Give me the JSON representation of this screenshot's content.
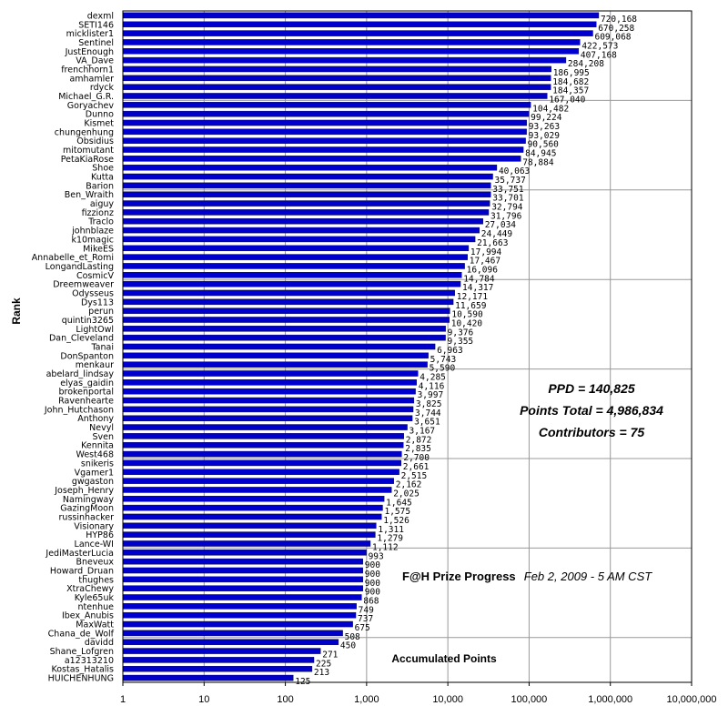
{
  "chart_data": {
    "type": "bar",
    "orientation": "horizontal",
    "x_scale": "log",
    "xlim": [
      1,
      10000000
    ],
    "x_ticks": [
      "1",
      "10",
      "100",
      "1,000",
      "10,000",
      "100,000",
      "1,000,000",
      "10,000,000"
    ],
    "ylabel": "Rank",
    "xlabel": "Accumulated Points",
    "grid": true,
    "bar_color": "#0000cc",
    "categories": [
      "dexml",
      "SETI146",
      "micklister1",
      "Sentinel",
      "JustEnough",
      "VA_Dave",
      "frenchhorn1",
      "amhamler",
      "rdyck",
      "Michael_G.R.",
      "Goryachev",
      "Dunno",
      "Kismet",
      "chungenhung",
      "Obsidius",
      "mitomutant",
      "PetaKiaRose",
      "Shoe",
      "Kutta",
      "Barion",
      "Ben_Wraith",
      "aiguy",
      "fizzionz",
      "Traclo",
      "johnblaze",
      "k10magic",
      "MikeES",
      "Annabelle_et_Romi",
      "LongandLasting",
      "CosmicV",
      "Dreemweaver",
      "Odysseus",
      "Dys113",
      "perun",
      "quintin3265",
      "LightOwl",
      "Dan_Cleveland",
      "Tanai",
      "DonSpanton",
      "menkaur",
      "abelard_lindsay",
      "elyas_gaidin",
      "brokenportal",
      "Ravenhearte",
      "John_Hutchason",
      "Anthony",
      "Nevyl",
      "Sven",
      "Kennita",
      "West468",
      "snikeris",
      "Vgamer1",
      "gwgaston",
      "Joseph_Henry",
      "Namingway",
      "GazingMoon",
      "russinhacker",
      "Visionary",
      "HYP86",
      "Lance-WI",
      "JediMasterLucia",
      "Bneveux",
      "Howard_Druan",
      "thughes",
      "XtraChewy",
      "Kyle65uk",
      "ntenhue",
      "Ibex_Anubis",
      "MaxWatt",
      "Chana_de_Wolf",
      "davidd",
      "Shane_Lofgren",
      "a12313210",
      "Kostas_Hatalis",
      "HUICHENHUNG"
    ],
    "values": [
      720168,
      670258,
      609068,
      422573,
      407168,
      284208,
      186995,
      184682,
      184357,
      167040,
      104482,
      99224,
      93263,
      93029,
      90560,
      84945,
      78884,
      40063,
      35737,
      33751,
      33701,
      32794,
      31796,
      27034,
      24449,
      21663,
      17994,
      17467,
      16096,
      14784,
      14317,
      12171,
      11659,
      10590,
      10420,
      9376,
      9355,
      6963,
      5743,
      5590,
      4285,
      4116,
      3997,
      3825,
      3744,
      3651,
      3167,
      2872,
      2835,
      2700,
      2661,
      2515,
      2162,
      2025,
      1645,
      1575,
      1526,
      1311,
      1279,
      1112,
      993,
      900,
      900,
      900,
      900,
      868,
      749,
      737,
      675,
      508,
      450,
      271,
      225,
      213,
      125
    ],
    "value_labels": [
      "720,168",
      "670,258",
      "609,068",
      "422,573",
      "407,168",
      "284,208",
      "186,995",
      "184,682",
      "184,357",
      "167,040",
      "104,482",
      "99,224",
      "93,263",
      "93,029",
      "90,560",
      "84,945",
      "78,884",
      "40,063",
      "35,737",
      "33,751",
      "33,701",
      "32,794",
      "31,796",
      "27,034",
      "24,449",
      "21,663",
      "17,994",
      "17,467",
      "16,096",
      "14,784",
      "14,317",
      "12,171",
      "11,659",
      "10,590",
      "10,420",
      "9,376",
      "9,355",
      "6,963",
      "5,743",
      "5,590",
      "4,285",
      "4,116",
      "3,997",
      "3,825",
      "3,744",
      "3,651",
      "3,167",
      "2,872",
      "2,835",
      "2,700",
      "2,661",
      "2,515",
      "2,162",
      "2,025",
      "1,645",
      "1,575",
      "1,526",
      "1,311",
      "1,279",
      "1,112",
      "993",
      "900",
      "900",
      "900",
      "900",
      "868",
      "749",
      "737",
      "675",
      "508",
      "450",
      "271",
      "225",
      "213",
      "125"
    ],
    "annotations": {
      "ppd": "PPD = 140,825",
      "points_total": "Points Total = 4,986,834",
      "contributors": "Contributors = 75",
      "prize_title": "F@H Prize Progress",
      "prize_date": "Feb 2, 2009 - 5 AM CST"
    }
  }
}
